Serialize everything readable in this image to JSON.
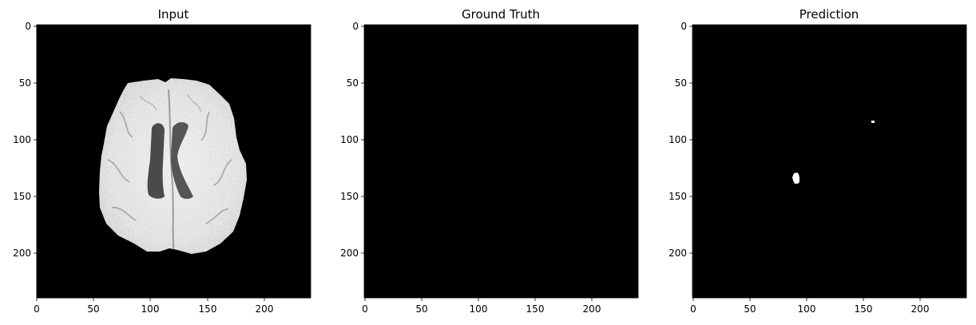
{
  "figure": {
    "background": "#ffffff",
    "panels": [
      {
        "id": "input",
        "title": "Input",
        "content": "brain-mri-axial-slice",
        "x_ticks": [
          "0",
          "50",
          "100",
          "150",
          "200"
        ],
        "y_ticks": [
          "0",
          "50",
          "100",
          "150",
          "200"
        ]
      },
      {
        "id": "ground-truth",
        "title": "Ground Truth",
        "content": "empty-mask",
        "x_ticks": [
          "0",
          "50",
          "100",
          "150",
          "200"
        ],
        "y_ticks": [
          "0",
          "50",
          "100",
          "150",
          "200"
        ]
      },
      {
        "id": "prediction",
        "title": "Prediction",
        "content": "predicted-mask",
        "x_ticks": [
          "0",
          "50",
          "100",
          "150",
          "200"
        ],
        "y_ticks": [
          "0",
          "50",
          "100",
          "150",
          "200"
        ]
      }
    ],
    "colors": {
      "image_background": "#000000",
      "mask_foreground": "#ffffff",
      "axis": "#000000"
    }
  }
}
